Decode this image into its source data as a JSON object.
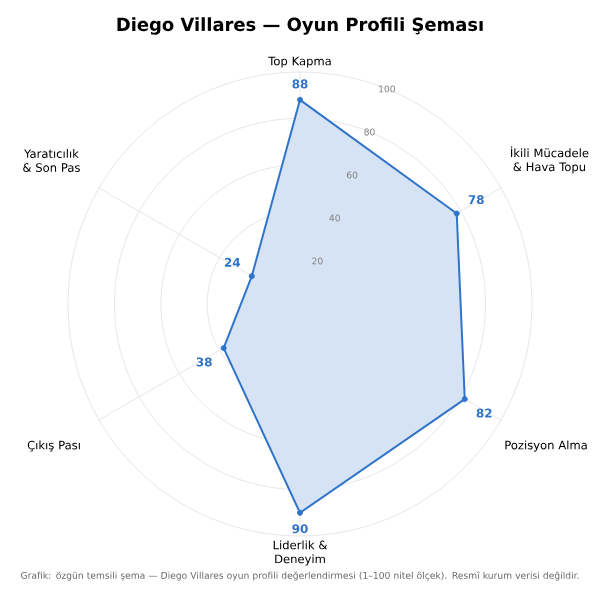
{
  "chart_data": {
    "type": "radar",
    "title": "Diego Villares — Oyun Profili Şeması",
    "categories": [
      "Top Kapma",
      "İkili Mücadele & Hava Topu",
      "Pozisyon Alma",
      "Liderlik & Deneyim",
      "Çıkış Pası",
      "Yaratıcılık & Son Pas"
    ],
    "series": [
      {
        "color": "#2f74c8",
        "values": [
          88,
          78,
          82,
          90,
          38,
          24
        ]
      }
    ],
    "ylim": [
      0,
      100
    ],
    "yticks": [
      20,
      40,
      60,
      80,
      100
    ],
    "grid": true,
    "marker": "circle",
    "data_labels": true,
    "annotations": [
      "Grafik: özgün temsili şema — Diego Villares oyun profili değerlendirmesi (1–100 nitel ölçek). Resmî kurum verisi değildir."
    ]
  }
}
